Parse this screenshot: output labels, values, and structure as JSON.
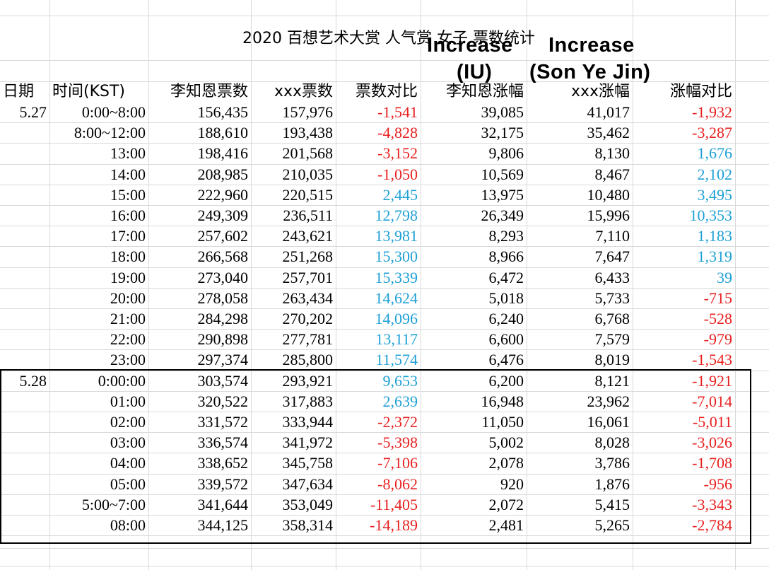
{
  "title": "2020 百想艺术大赏 人气赏 女子 票数统计",
  "annotations": {
    "iu_line1": "Increase",
    "iu_line2": "(IU)",
    "syj_line1": "Increase",
    "syj_line2": "(Son Ye Jin)"
  },
  "headers": [
    "日期",
    "时间(KST)",
    "李知恩票数",
    "xxx票数",
    "票数对比",
    "李知恩涨幅",
    "xxx涨幅",
    "涨幅对比"
  ],
  "colors": {
    "negative": "#e8201f",
    "positive": "#1ea0d6",
    "grid": "#d9d9d9"
  },
  "rows": [
    {
      "date": "5.27",
      "time": "0:00~8:00",
      "a": "156,435",
      "b": "157,976",
      "diff": "-1,541",
      "ai": "39,085",
      "bi": "41,017",
      "idiff": "-1,932",
      "diff_sign": "neg",
      "idiff_sign": "neg"
    },
    {
      "date": "",
      "time": "8:00~12:00",
      "a": "188,610",
      "b": "193,438",
      "diff": "-4,828",
      "ai": "32,175",
      "bi": "35,462",
      "idiff": "-3,287",
      "diff_sign": "neg",
      "idiff_sign": "neg"
    },
    {
      "date": "",
      "time": "13:00",
      "a": "198,416",
      "b": "201,568",
      "diff": "-3,152",
      "ai": "9,806",
      "bi": "8,130",
      "idiff": "1,676",
      "diff_sign": "neg",
      "idiff_sign": "pos"
    },
    {
      "date": "",
      "time": "14:00",
      "a": "208,985",
      "b": "210,035",
      "diff": "-1,050",
      "ai": "10,569",
      "bi": "8,467",
      "idiff": "2,102",
      "diff_sign": "neg",
      "idiff_sign": "pos"
    },
    {
      "date": "",
      "time": "15:00",
      "a": "222,960",
      "b": "220,515",
      "diff": "2,445",
      "ai": "13,975",
      "bi": "10,480",
      "idiff": "3,495",
      "diff_sign": "pos",
      "idiff_sign": "pos"
    },
    {
      "date": "",
      "time": "16:00",
      "a": "249,309",
      "b": "236,511",
      "diff": "12,798",
      "ai": "26,349",
      "bi": "15,996",
      "idiff": "10,353",
      "diff_sign": "pos",
      "idiff_sign": "pos"
    },
    {
      "date": "",
      "time": "17:00",
      "a": "257,602",
      "b": "243,621",
      "diff": "13,981",
      "ai": "8,293",
      "bi": "7,110",
      "idiff": "1,183",
      "diff_sign": "pos",
      "idiff_sign": "pos"
    },
    {
      "date": "",
      "time": "18:00",
      "a": "266,568",
      "b": "251,268",
      "diff": "15,300",
      "ai": "8,966",
      "bi": "7,647",
      "idiff": "1,319",
      "diff_sign": "pos",
      "idiff_sign": "pos"
    },
    {
      "date": "",
      "time": "19:00",
      "a": "273,040",
      "b": "257,701",
      "diff": "15,339",
      "ai": "6,472",
      "bi": "6,433",
      "idiff": "39",
      "diff_sign": "pos",
      "idiff_sign": "pos"
    },
    {
      "date": "",
      "time": "20:00",
      "a": "278,058",
      "b": "263,434",
      "diff": "14,624",
      "ai": "5,018",
      "bi": "5,733",
      "idiff": "-715",
      "diff_sign": "pos",
      "idiff_sign": "neg"
    },
    {
      "date": "",
      "time": "21:00",
      "a": "284,298",
      "b": "270,202",
      "diff": "14,096",
      "ai": "6,240",
      "bi": "6,768",
      "idiff": "-528",
      "diff_sign": "pos",
      "idiff_sign": "neg"
    },
    {
      "date": "",
      "time": "22:00",
      "a": "290,898",
      "b": "277,781",
      "diff": "13,117",
      "ai": "6,600",
      "bi": "7,579",
      "idiff": "-979",
      "diff_sign": "pos",
      "idiff_sign": "neg"
    },
    {
      "date": "",
      "time": "23:00",
      "a": "297,374",
      "b": "285,800",
      "diff": "11,574",
      "ai": "6,476",
      "bi": "8,019",
      "idiff": "-1,543",
      "diff_sign": "pos",
      "idiff_sign": "neg"
    },
    {
      "date": "5.28",
      "time": "0:00:00",
      "a": "303,574",
      "b": "293,921",
      "diff": "9,653",
      "ai": "6,200",
      "bi": "8,121",
      "idiff": "-1,921",
      "diff_sign": "pos",
      "idiff_sign": "neg"
    },
    {
      "date": "",
      "time": "01:00",
      "a": "320,522",
      "b": "317,883",
      "diff": "2,639",
      "ai": "16,948",
      "bi": "23,962",
      "idiff": "-7,014",
      "diff_sign": "pos",
      "idiff_sign": "neg"
    },
    {
      "date": "",
      "time": "02:00",
      "a": "331,572",
      "b": "333,944",
      "diff": "-2,372",
      "ai": "11,050",
      "bi": "16,061",
      "idiff": "-5,011",
      "diff_sign": "neg",
      "idiff_sign": "neg"
    },
    {
      "date": "",
      "time": "03:00",
      "a": "336,574",
      "b": "341,972",
      "diff": "-5,398",
      "ai": "5,002",
      "bi": "8,028",
      "idiff": "-3,026",
      "diff_sign": "neg",
      "idiff_sign": "neg"
    },
    {
      "date": "",
      "time": "04:00",
      "a": "338,652",
      "b": "345,758",
      "diff": "-7,106",
      "ai": "2,078",
      "bi": "3,786",
      "idiff": "-1,708",
      "diff_sign": "neg",
      "idiff_sign": "neg"
    },
    {
      "date": "",
      "time": "05:00",
      "a": "339,572",
      "b": "347,634",
      "diff": "-8,062",
      "ai": "920",
      "bi": "1,876",
      "idiff": "-956",
      "diff_sign": "neg",
      "idiff_sign": "neg"
    },
    {
      "date": "",
      "time": "5:00~7:00",
      "a": "341,644",
      "b": "353,049",
      "diff": "-11,405",
      "ai": "2,072",
      "bi": "5,415",
      "idiff": "-3,343",
      "diff_sign": "neg",
      "idiff_sign": "neg"
    },
    {
      "date": "",
      "time": "08:00",
      "a": "344,125",
      "b": "358,314",
      "diff": "-14,189",
      "ai": "2,481",
      "bi": "5,265",
      "idiff": "-2,784",
      "diff_sign": "neg",
      "idiff_sign": "neg"
    }
  ]
}
